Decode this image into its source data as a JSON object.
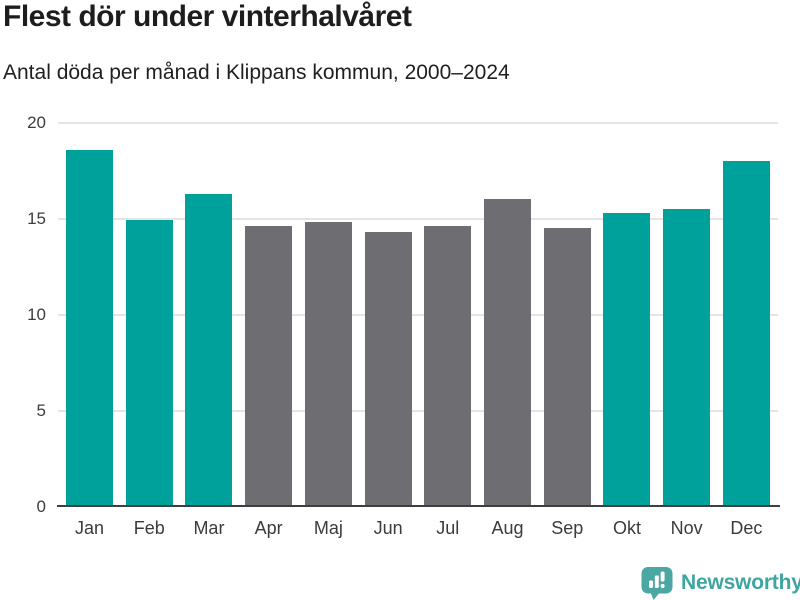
{
  "header": {
    "title": "Flest dör under vinterhalvåret",
    "subtitle": "Antal döda per månad i Klippans kommun, 2000–2024"
  },
  "chart_data": {
    "type": "bar",
    "title": "Flest dör under vinterhalvåret",
    "subtitle": "Antal döda per månad i Klippans kommun, 2000–2024",
    "categories": [
      "Jan",
      "Feb",
      "Mar",
      "Apr",
      "Maj",
      "Jun",
      "Jul",
      "Aug",
      "Sep",
      "Okt",
      "Nov",
      "Dec"
    ],
    "values": [
      18.6,
      14.9,
      16.3,
      14.6,
      14.8,
      14.3,
      14.6,
      16.0,
      14.5,
      15.3,
      15.5,
      18.0
    ],
    "bar_colors": [
      "#00a19a",
      "#00a19a",
      "#00a19a",
      "#6e6d72",
      "#6e6d72",
      "#6e6d72",
      "#6e6d72",
      "#6e6d72",
      "#6e6d72",
      "#00a19a",
      "#00a19a",
      "#00a19a"
    ],
    "highlight_color": "#00a19a",
    "base_color": "#6e6d72",
    "xlabel": "",
    "ylabel": "",
    "ylim": [
      0,
      20
    ],
    "yticks": [
      0,
      5,
      10,
      15,
      20
    ],
    "grid": true,
    "legend": false
  },
  "footer": {
    "brand": "Newsworthy",
    "brand_color": "#3fa5a0",
    "logo_icon": "bar-chart-speech-bubble-icon"
  }
}
